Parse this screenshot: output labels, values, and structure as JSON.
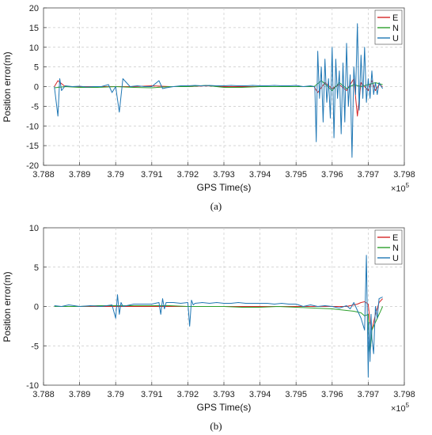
{
  "chart_data": [
    {
      "type": "line",
      "caption": "(a)",
      "xlabel": "GPS Time(s)",
      "ylabel": "Position error(m)",
      "x_multiplier": "×10",
      "x_multiplier_exp": "5",
      "xlim": [
        3.788,
        3.798
      ],
      "ylim": [
        -20,
        20
      ],
      "xticks": [
        "3.788",
        "3.789",
        "3.79",
        "3.791",
        "3.792",
        "3.793",
        "3.794",
        "3.795",
        "3.796",
        "3.797",
        "3.798"
      ],
      "yticks": [
        "20",
        "15",
        "10",
        "5",
        "0",
        "-5",
        "-10",
        "-15",
        "-20"
      ],
      "grid": true,
      "legend_position": "top-right",
      "series": [
        {
          "name": "E",
          "color": "#d62728",
          "x": [
            3.7883,
            3.7884,
            3.7886,
            3.789,
            3.7895,
            3.79,
            3.7905,
            3.791,
            3.7915,
            3.792,
            3.7925,
            3.793,
            3.7935,
            3.794,
            3.7945,
            3.795,
            3.7955,
            3.7956,
            3.7958,
            3.796,
            3.7962,
            3.7964,
            3.7966,
            3.7967,
            3.7968,
            3.797,
            3.7971,
            3.7972,
            3.7973,
            3.7974
          ],
          "y": [
            0,
            1.5,
            0,
            0,
            0,
            0,
            0,
            0.2,
            0,
            0,
            0.2,
            0,
            0,
            0,
            0,
            0,
            0,
            -1.5,
            1,
            -0.5,
            0.5,
            -1,
            2,
            -7.5,
            1,
            -1,
            1.5,
            -1,
            0.5,
            0
          ]
        },
        {
          "name": "N",
          "color": "#2ca02c",
          "x": [
            3.7883,
            3.7886,
            3.789,
            3.7895,
            3.79,
            3.7905,
            3.791,
            3.7915,
            3.792,
            3.7925,
            3.793,
            3.7935,
            3.794,
            3.7945,
            3.795,
            3.7955,
            3.7957,
            3.796,
            3.7962,
            3.7964,
            3.7966,
            3.7968,
            3.797,
            3.7972,
            3.7974
          ],
          "y": [
            -0.3,
            0,
            -0.2,
            -0.2,
            0,
            -0.2,
            -0.3,
            0,
            0,
            0.3,
            -0.2,
            -0.2,
            0,
            0,
            0,
            0,
            1.5,
            -1,
            1,
            -0.5,
            0.5,
            0,
            0.5,
            1,
            0.5
          ]
        },
        {
          "name": "U",
          "color": "#1f77b4",
          "x": [
            3.7883,
            3.7884,
            3.78845,
            3.7885,
            3.7886,
            3.7888,
            3.789,
            3.7892,
            3.7894,
            3.7896,
            3.7898,
            3.7899,
            3.79,
            3.7901,
            3.7902,
            3.7904,
            3.7906,
            3.7908,
            3.791,
            3.7912,
            3.7913,
            3.7914,
            3.7916,
            3.7918,
            3.792,
            3.7922,
            3.7924,
            3.7926,
            3.7928,
            3.793,
            3.7932,
            3.7934,
            3.7936,
            3.7938,
            3.794,
            3.7942,
            3.7944,
            3.7946,
            3.7948,
            3.795,
            3.7952,
            3.7954,
            3.79552,
            3.79556,
            3.7956,
            3.79565,
            3.7957,
            3.79575,
            3.7958,
            3.79585,
            3.7959,
            3.79595,
            3.796,
            3.79605,
            3.7961,
            3.79615,
            3.7962,
            3.79625,
            3.7963,
            3.79635,
            3.7964,
            3.79645,
            3.7965,
            3.79655,
            3.7966,
            3.79665,
            3.7967,
            3.79675,
            3.7968,
            3.79685,
            3.7969,
            3.79695,
            3.797,
            3.79705,
            3.7971,
            3.79715,
            3.7972,
            3.79725,
            3.7973,
            3.7974
          ],
          "y": [
            0,
            -7.5,
            2,
            -1,
            0.2,
            0,
            0.1,
            -0.1,
            0,
            0,
            0.5,
            -1.5,
            0,
            -6.5,
            2,
            0,
            0.2,
            0,
            0,
            1.5,
            -0.5,
            -0.3,
            0,
            0.2,
            0.2,
            0.3,
            0.2,
            0.3,
            0.2,
            0.2,
            0.3,
            0.2,
            0.2,
            0.3,
            0.2,
            0.2,
            0.3,
            0.2,
            0.2,
            0.3,
            0,
            0.2,
            0,
            -14,
            9,
            -3,
            5,
            -9,
            7,
            -4,
            2,
            -8,
            10,
            -13,
            7,
            -3,
            4,
            -12,
            6,
            -9,
            11,
            -5,
            3,
            -18,
            5,
            -2,
            16,
            -6,
            8,
            -3,
            10,
            -4,
            2,
            -3,
            4,
            -2,
            1,
            -2,
            1,
            -0.5
          ]
        }
      ]
    },
    {
      "type": "line",
      "caption": "(b)",
      "xlabel": "GPS Time(s)",
      "ylabel": "Position error(m)",
      "x_multiplier": "×10",
      "x_multiplier_exp": "5",
      "xlim": [
        3.788,
        3.798
      ],
      "ylim": [
        -10,
        10
      ],
      "xticks": [
        "3.788",
        "3.789",
        "3.79",
        "3.791",
        "3.792",
        "3.793",
        "3.794",
        "3.795",
        "3.796",
        "3.797",
        "3.798"
      ],
      "yticks": [
        "10",
        "5",
        "0",
        "-5",
        "-10"
      ],
      "grid": true,
      "legend_position": "top-right",
      "series": [
        {
          "name": "E",
          "color": "#d62728",
          "x": [
            3.7883,
            3.7886,
            3.789,
            3.7895,
            3.79,
            3.7905,
            3.791,
            3.7915,
            3.792,
            3.7925,
            3.793,
            3.7935,
            3.794,
            3.7945,
            3.795,
            3.7955,
            3.796,
            3.7962,
            3.7964,
            3.7966,
            3.7967,
            3.7968,
            3.7969,
            3.797,
            3.79705,
            3.7971,
            3.7972,
            3.7973,
            3.7974
          ],
          "y": [
            0,
            0,
            0,
            0,
            0,
            0,
            0,
            0,
            0,
            0,
            0,
            0,
            0,
            0,
            0,
            0,
            0,
            0,
            0,
            0.2,
            0.3,
            0.5,
            0.6,
            0.3,
            -2,
            -3,
            -1,
            0.5,
            1
          ]
        },
        {
          "name": "N",
          "color": "#2ca02c",
          "x": [
            3.7883,
            3.7886,
            3.789,
            3.7895,
            3.79,
            3.7905,
            3.791,
            3.7915,
            3.792,
            3.7925,
            3.793,
            3.7935,
            3.794,
            3.7945,
            3.795,
            3.7955,
            3.796,
            3.7962,
            3.7964,
            3.7966,
            3.7967,
            3.7968,
            3.7969,
            3.797,
            3.79702,
            3.79705,
            3.7971,
            3.7972,
            3.7973,
            3.7974
          ],
          "y": [
            0,
            0,
            0,
            0.1,
            0.1,
            0.1,
            0.1,
            0.1,
            0,
            0,
            0,
            -0.1,
            -0.1,
            0,
            -0.1,
            -0.2,
            -0.3,
            -0.4,
            -0.5,
            -0.6,
            -0.7,
            -0.8,
            -1.2,
            -1,
            -5,
            -6,
            -3,
            -2,
            -1,
            0
          ]
        },
        {
          "name": "U",
          "color": "#1f77b4",
          "x": [
            3.7883,
            3.7885,
            3.7887,
            3.789,
            3.7893,
            3.7896,
            3.7899,
            3.79,
            3.79005,
            3.7901,
            3.79015,
            3.7902,
            3.7905,
            3.7908,
            3.791,
            3.7912,
            3.79125,
            3.7913,
            3.79135,
            3.7914,
            3.7916,
            3.7918,
            3.792,
            3.79205,
            3.7921,
            3.79215,
            3.7922,
            3.7924,
            3.7926,
            3.7928,
            3.793,
            3.7932,
            3.7934,
            3.7936,
            3.7938,
            3.794,
            3.7942,
            3.7944,
            3.7946,
            3.7948,
            3.795,
            3.7952,
            3.7954,
            3.7956,
            3.7958,
            3.796,
            3.7962,
            3.7964,
            3.7965,
            3.7966,
            3.7967,
            3.7968,
            3.7969,
            3.79695,
            3.797,
            3.79702,
            3.79705,
            3.79708,
            3.7971,
            3.79715,
            3.7972,
            3.79725,
            3.7973,
            3.7974
          ],
          "y": [
            0.1,
            0,
            0.2,
            0,
            0.1,
            0,
            0.2,
            -1.5,
            1.5,
            -1,
            0.5,
            0,
            0.3,
            0.3,
            0.3,
            0.5,
            -1,
            1,
            -0.3,
            0.5,
            0.5,
            0.4,
            0.5,
            -2.5,
            0.8,
            0.2,
            0.4,
            0.5,
            0.4,
            0.5,
            0.4,
            0.4,
            0.5,
            0.4,
            0.4,
            0.4,
            0.4,
            0.3,
            0.4,
            0.3,
            0.3,
            0,
            0.2,
            0,
            0.1,
            0,
            -0.2,
            0.1,
            -0.3,
            0.5,
            -0.5,
            -1.5,
            -3,
            6.5,
            -9,
            -2,
            -7,
            -1,
            -4,
            -6,
            0,
            -1.5,
            1,
            1.2
          ]
        }
      ]
    }
  ]
}
